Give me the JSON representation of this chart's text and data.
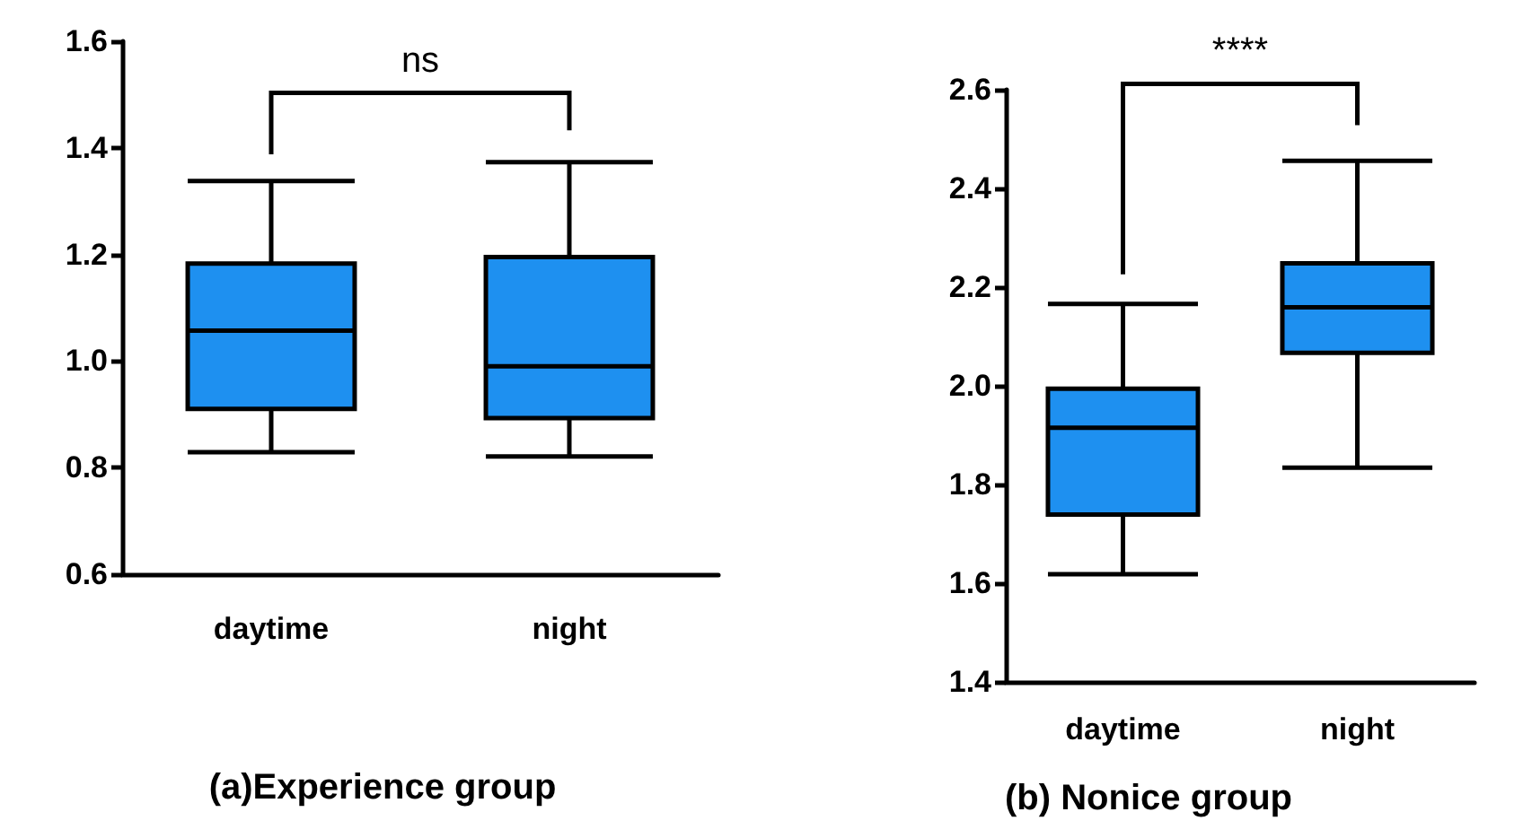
{
  "chart_data": [
    {
      "type": "box",
      "title": "(a)Experience group",
      "categories": [
        "daytime",
        "night"
      ],
      "series": [
        {
          "color": "#1e90f0",
          "boxes": [
            {
              "low": 0.829,
              "q1": 0.91,
              "median": 1.057,
              "q3": 1.183,
              "high": 1.338
            },
            {
              "low": 0.821,
              "q1": 0.893,
              "median": 0.99,
              "q3": 1.195,
              "high": 1.373
            }
          ]
        }
      ],
      "ylim": [
        0.6,
        1.6
      ],
      "yticks": [
        0.6,
        0.8,
        {
          "value": 1,
          "label": "1.0"
        },
        1.2,
        1.4,
        1.6
      ],
      "annotations": [
        "ns"
      ]
    },
    {
      "type": "box",
      "title": "(b) Nonice group",
      "categories": [
        "daytime",
        "night"
      ],
      "series": [
        {
          "color": "#1e90f0",
          "boxes": [
            {
              "low": 1.618,
              "q1": 1.739,
              "median": 1.915,
              "q3": 1.994,
              "high": 2.166
            },
            {
              "low": 1.834,
              "q1": 2.067,
              "median": 2.159,
              "q3": 2.248,
              "high": 2.456
            }
          ]
        }
      ],
      "ylim": [
        1.4,
        2.6
      ],
      "yticks": [
        1.4,
        1.6,
        1.8,
        {
          "value": 2,
          "label": "2.0"
        },
        2.2,
        2.4,
        2.6
      ],
      "annotations": [
        "****"
      ]
    }
  ]
}
